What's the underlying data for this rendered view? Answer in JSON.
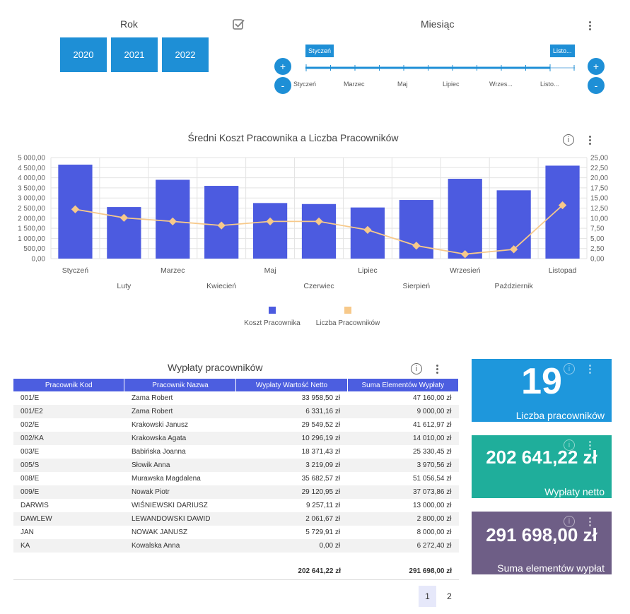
{
  "year_filter": {
    "title": "Rok",
    "years": [
      "2020",
      "2021",
      "2022"
    ]
  },
  "month_filter": {
    "title": "Miesiąc",
    "start_tag": "Styczeń",
    "end_tag": "Listo...",
    "plus": "+",
    "minus": "-",
    "ticks": [
      "Styczeń",
      "Marzec",
      "Maj",
      "Lipiec",
      "Wrzes...",
      "Listo..."
    ]
  },
  "chart": {
    "title": "Średni Koszt Pracownika a Liczba Pracowników",
    "info": "i",
    "legend": [
      "Koszt Pracownika",
      "Liczba Pracowników"
    ],
    "left_ticks": [
      "5 000,00",
      "4 500,00",
      "4 000,00",
      "3 500,00",
      "3 000,00",
      "2 500,00",
      "2 000,00",
      "1 500,00",
      "1 000,00",
      "500,00",
      "0,00"
    ],
    "right_ticks": [
      "25,00",
      "22,50",
      "20,00",
      "17,50",
      "15,00",
      "12,50",
      "10,00",
      "7,50",
      "5,00",
      "2,50",
      "0,00"
    ]
  },
  "chart_data": {
    "type": "bar",
    "title": "Średni Koszt Pracownika a Liczba Pracowników",
    "categories": [
      "Styczeń",
      "Luty",
      "Marzec",
      "Kwiecień",
      "Maj",
      "Czerwiec",
      "Lipiec",
      "Sierpień",
      "Wrzesień",
      "Październik",
      "Listopad"
    ],
    "series": [
      {
        "name": "Koszt Pracownika",
        "type": "bar",
        "axis": "left",
        "color": "#4c5be0",
        "values": [
          4650,
          2550,
          3900,
          3600,
          2750,
          2700,
          2530,
          2900,
          3950,
          3380,
          4600
        ]
      },
      {
        "name": "Liczba Pracowników",
        "type": "line",
        "axis": "right",
        "color": "#f7c98a",
        "values": [
          12.2,
          10.1,
          9.2,
          8.2,
          9.2,
          9.2,
          7.1,
          3.2,
          1.1,
          2.3,
          13.2
        ]
      }
    ],
    "ylim_left": [
      0,
      5000
    ],
    "ylim_right": [
      0,
      25
    ],
    "grid": true,
    "legend_position": "bottom"
  },
  "table": {
    "title": "Wypłaty pracowników",
    "info": "i",
    "columns": [
      "Pracownik Kod",
      "Pracownik Nazwa",
      "Wypłaty Wartość Netto",
      "Suma Elementów Wypłaty"
    ],
    "rows": [
      [
        "001/E",
        "Zama Robert",
        "33 958,50 zł",
        "47 160,00 zł"
      ],
      [
        "001/E2",
        "Zama Robert",
        "6 331,16 zł",
        "9 000,00 zł"
      ],
      [
        "002/E",
        "Krakowski Janusz",
        "29 549,52 zł",
        "41 612,97 zł"
      ],
      [
        "002/KA",
        "Krakowska Agata",
        "10 296,19 zł",
        "14 010,00 zł"
      ],
      [
        "003/E",
        "Babińska Joanna",
        "18 371,43 zł",
        "25 330,45 zł"
      ],
      [
        "005/S",
        "Słowik Anna",
        "3 219,09 zł",
        "3 970,56 zł"
      ],
      [
        "008/E",
        "Murawska Magdalena",
        "35 682,57 zł",
        "51 056,54 zł"
      ],
      [
        "009/E",
        "Nowak Piotr",
        "29 120,95 zł",
        "37 073,86 zł"
      ],
      [
        "DARWIS",
        "WIŚNIEWSKI DARIUSZ",
        "9 257,11 zł",
        "13 000,00 zł"
      ],
      [
        "DAWLEW",
        "LEWANDOWSKI DAWID",
        "2 061,67 zł",
        "2 800,00 zł"
      ],
      [
        "JAN",
        "NOWAK JANUSZ",
        "5 729,91 zł",
        "8 000,00 zł"
      ],
      [
        "KA",
        "Kowalska Anna",
        "0,00 zł",
        "6 272,40 zł"
      ]
    ],
    "totals": [
      "202 641,22 zł",
      "291 698,00 zł"
    ],
    "pages": [
      "1",
      "2"
    ],
    "current_page": "1"
  },
  "kpis": [
    {
      "value": "19",
      "label": "Liczba pracowników",
      "color": "#1e97dc"
    },
    {
      "value": "202 641,22 zł",
      "label": "Wypłaty netto",
      "color": "#1fae9b"
    },
    {
      "value": "291 698,00 zł",
      "label": "Suma elementów wypłat",
      "color": "#6e5e86"
    }
  ]
}
